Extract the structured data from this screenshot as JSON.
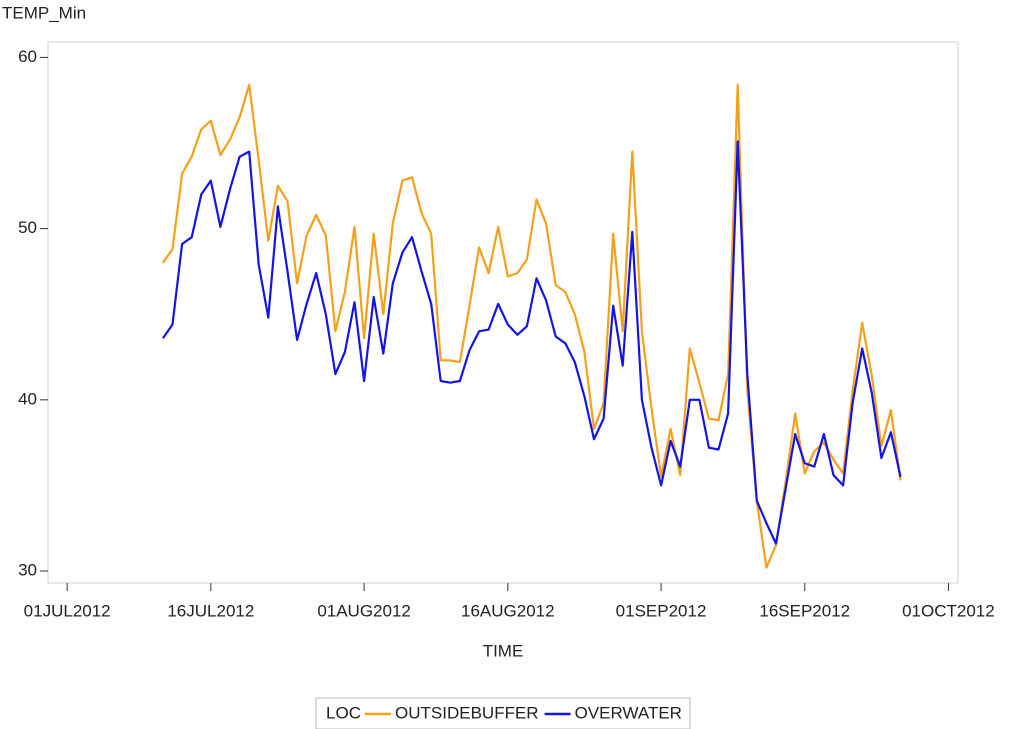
{
  "chart_data": {
    "type": "line",
    "y_label": "TEMP_Min",
    "x_label": "TIME",
    "legend_title": "LOC",
    "x": [
      "2012-07-11",
      "2012-07-12",
      "2012-07-13",
      "2012-07-14",
      "2012-07-15",
      "2012-07-16",
      "2012-07-17",
      "2012-07-18",
      "2012-07-19",
      "2012-07-20",
      "2012-07-21",
      "2012-07-22",
      "2012-07-23",
      "2012-07-24",
      "2012-07-25",
      "2012-07-26",
      "2012-07-27",
      "2012-07-28",
      "2012-07-29",
      "2012-07-30",
      "2012-07-31",
      "2012-08-01",
      "2012-08-02",
      "2012-08-03",
      "2012-08-04",
      "2012-08-05",
      "2012-08-06",
      "2012-08-07",
      "2012-08-08",
      "2012-08-09",
      "2012-08-10",
      "2012-08-11",
      "2012-08-12",
      "2012-08-13",
      "2012-08-14",
      "2012-08-15",
      "2012-08-16",
      "2012-08-17",
      "2012-08-18",
      "2012-08-19",
      "2012-08-20",
      "2012-08-21",
      "2012-08-22",
      "2012-08-23",
      "2012-08-24",
      "2012-08-25",
      "2012-08-26",
      "2012-08-27",
      "2012-08-28",
      "2012-08-29",
      "2012-08-30",
      "2012-08-31",
      "2012-09-01",
      "2012-09-02",
      "2012-09-03",
      "2012-09-04",
      "2012-09-05",
      "2012-09-06",
      "2012-09-07",
      "2012-09-08",
      "2012-09-09",
      "2012-09-10",
      "2012-09-11",
      "2012-09-12",
      "2012-09-13",
      "2012-09-14",
      "2012-09-15",
      "2012-09-16",
      "2012-09-17",
      "2012-09-18",
      "2012-09-19",
      "2012-09-20",
      "2012-09-21",
      "2012-09-22",
      "2012-09-23",
      "2012-09-24",
      "2012-09-25",
      "2012-09-26"
    ],
    "series": [
      {
        "name": "OUTSIDEBUFFER",
        "color": "#f5a01a",
        "values": [
          48.0,
          48.8,
          53.2,
          54.2,
          55.8,
          56.3,
          54.3,
          55.2,
          56.5,
          58.4,
          54.0,
          49.3,
          52.5,
          51.6,
          46.8,
          49.6,
          50.8,
          49.6,
          44.0,
          46.3,
          50.1,
          43.6,
          49.7,
          45.0,
          50.3,
          52.8,
          53.0,
          50.9,
          49.7,
          42.3,
          42.3,
          42.2,
          45.5,
          48.9,
          47.4,
          50.1,
          47.2,
          47.4,
          48.2,
          51.7,
          50.3,
          46.7,
          46.3,
          45.0,
          42.8,
          38.3,
          39.8,
          49.7,
          44.0,
          54.5,
          44.0,
          39.5,
          35.5,
          38.3,
          35.6,
          43.0,
          41.0,
          38.9,
          38.8,
          41.5,
          58.4,
          40.6,
          34.1,
          30.2,
          31.5,
          35.2,
          39.2,
          35.7,
          37.0,
          37.5,
          36.5,
          35.7,
          40.5,
          44.5,
          41.4,
          37.3,
          39.4,
          35.3
        ]
      },
      {
        "name": "OVERWATER",
        "color": "#1414e6",
        "values": [
          43.6,
          44.4,
          49.1,
          49.5,
          52.0,
          52.8,
          50.1,
          52.3,
          54.2,
          54.5,
          47.9,
          44.8,
          51.3,
          47.5,
          43.5,
          45.6,
          47.4,
          45.0,
          41.5,
          42.8,
          45.7,
          41.1,
          46.0,
          42.7,
          46.8,
          48.6,
          49.5,
          47.5,
          45.6,
          41.1,
          41.0,
          41.1,
          42.9,
          44.0,
          44.1,
          45.6,
          44.4,
          43.8,
          44.3,
          47.1,
          45.8,
          43.7,
          43.3,
          42.2,
          40.2,
          37.7,
          38.9,
          45.5,
          42.0,
          49.8,
          40.0,
          37.2,
          35.0,
          37.6,
          36.1,
          40.0,
          40.0,
          37.2,
          37.1,
          39.2,
          55.1,
          41.5,
          34.1,
          32.8,
          31.6,
          34.8,
          38.0,
          36.3,
          36.1,
          38.0,
          35.6,
          35.0,
          39.8,
          43.0,
          40.4,
          36.6,
          38.1,
          35.5
        ]
      }
    ],
    "xlim": [
      "2012-06-29",
      "2012-10-02"
    ],
    "xticks": [
      {
        "value": "2012-07-01",
        "label": "01JUL2012"
      },
      {
        "value": "2012-07-16",
        "label": "16JUL2012"
      },
      {
        "value": "2012-08-01",
        "label": "01AUG2012"
      },
      {
        "value": "2012-08-16",
        "label": "16AUG2012"
      },
      {
        "value": "2012-09-01",
        "label": "01SEP2012"
      },
      {
        "value": "2012-09-16",
        "label": "16SEP2012"
      },
      {
        "value": "2012-10-01",
        "label": "01OCT2012"
      }
    ],
    "ylim": [
      29.3,
      60.9
    ],
    "yticks": [
      30,
      40,
      50,
      60
    ],
    "grid": false,
    "legend": "bottom"
  }
}
